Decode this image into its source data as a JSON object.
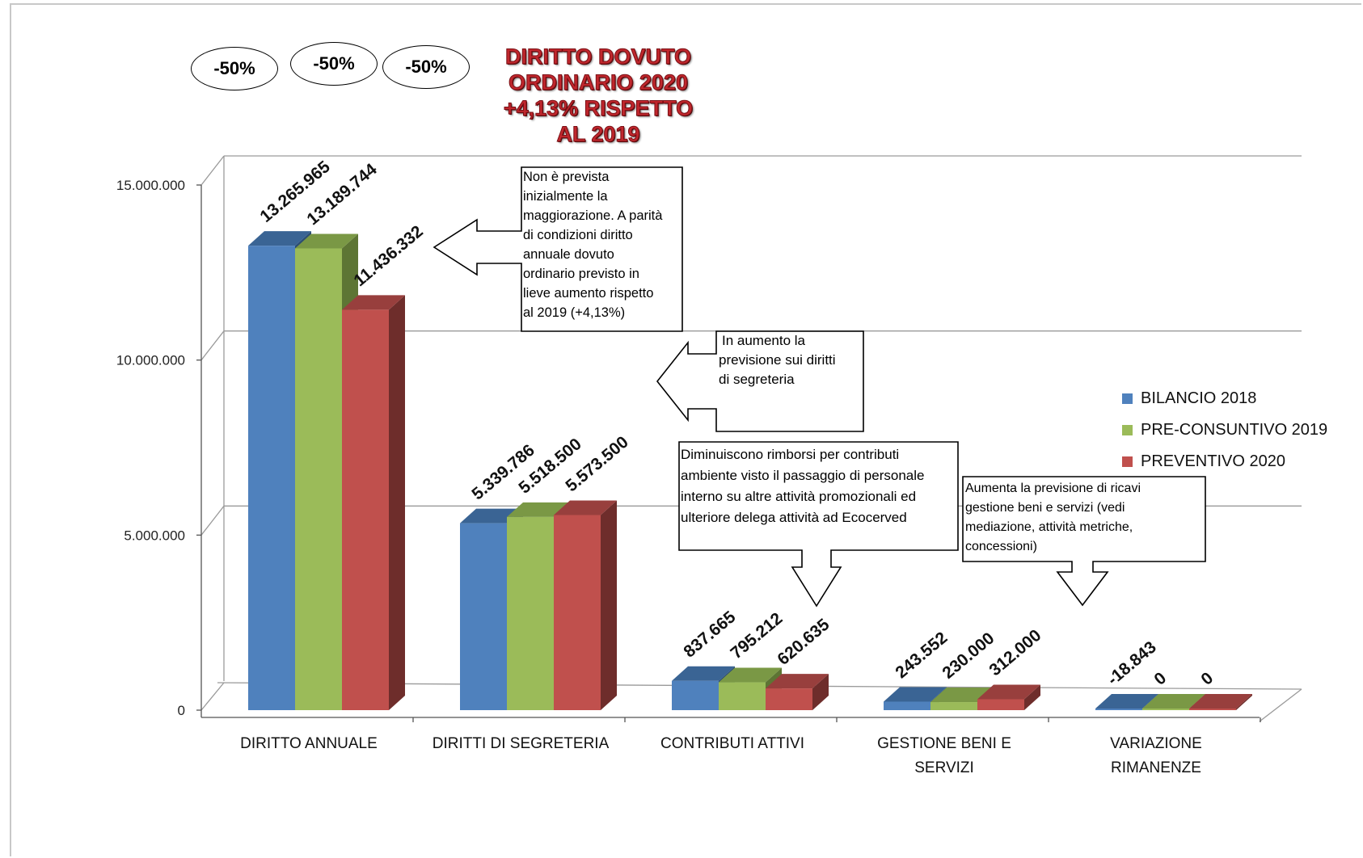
{
  "badges": [
    "-50%",
    "-50%",
    "-50%"
  ],
  "title_lines": [
    "DIRITTO DOVUTO",
    "ORDINARIO 2020",
    "+4,13% RISPETTO",
    "AL 2019"
  ],
  "callouts": {
    "diritto_annuale": [
      "Non è prevista",
      "inizialmente la",
      "maggiorazione. A parità",
      "di condizioni diritto",
      "annuale dovuto",
      "ordinario previsto in",
      "lieve aumento rispetto",
      "al 2019 (+4,13%)"
    ],
    "segreteria": [
      "In aumento la",
      "previsione sui diritti",
      "di segreteria"
    ],
    "contributi": [
      "Diminuiscono rimborsi per contributi",
      "ambiente visto il passaggio di personale",
      "interno su altre attività promozionali ed",
      "ulteriore delega attività ad Ecocerved"
    ],
    "gestione": [
      "Aumenta la previsione di ricavi",
      "gestione beni e servizi (vedi",
      "mediazione, attività metriche,",
      "concessioni)"
    ]
  },
  "chart_data": {
    "type": "bar",
    "categories": [
      [
        "DIRITTO ANNUALE"
      ],
      [
        "DIRITTI DI SEGRETERIA"
      ],
      [
        "CONTRIBUTI ATTIVI"
      ],
      [
        "GESTIONE BENI E",
        "SERVIZI"
      ],
      [
        "VARIAZIONE",
        "RIMANENZE"
      ]
    ],
    "series": [
      {
        "name": "BILANCIO 2018",
        "color": "#4f81bd",
        "values": [
          13265965,
          5339786,
          837665,
          243552,
          -18843
        ],
        "labels": [
          "13.265.965",
          "5.339.786",
          "837.665",
          "243.552",
          "-18.843"
        ]
      },
      {
        "name": "PRE-CONSUNTIVO 2019",
        "color": "#9bbb59",
        "values": [
          13189744,
          5518500,
          795212,
          230000,
          0
        ],
        "labels": [
          "13.189.744",
          "5.518.500",
          "795.212",
          "230.000",
          "0"
        ]
      },
      {
        "name": "PREVENTIVO 2020",
        "color": "#c0504d",
        "values": [
          11436332,
          5573500,
          620635,
          312000,
          0
        ],
        "labels": [
          "11.436.332",
          "5.573.500",
          "620.635",
          "312.000",
          "0"
        ]
      }
    ],
    "y_ticks": [
      "0",
      "5.000.000",
      "10.000.000",
      "15.000.000"
    ],
    "ylim": [
      0,
      15000000
    ],
    "grid": true,
    "legend_position": "right"
  }
}
